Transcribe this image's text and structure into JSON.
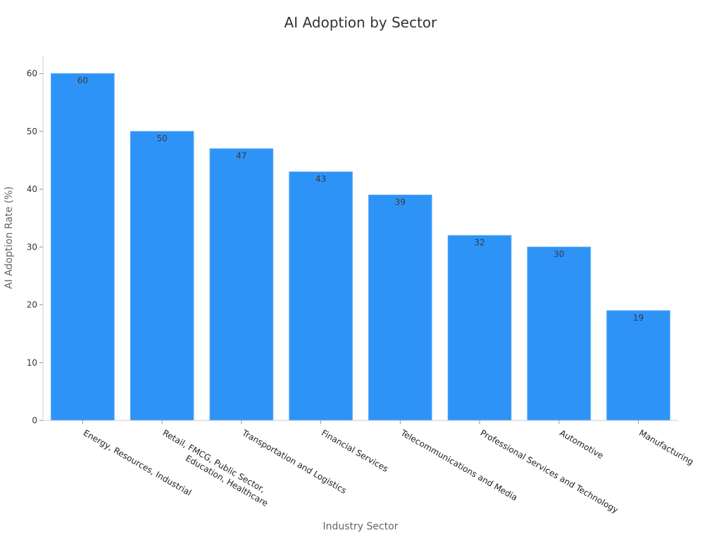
{
  "chart_data": {
    "type": "bar",
    "title": "AI Adoption by Sector",
    "xlabel": "Industry Sector",
    "ylabel": "AI Adoption Rate (%)",
    "categories": [
      "Energy, Resources, Industrial",
      "Retail, FMCG, Public Sector,\nEducation, Healthcare",
      "Transportation and Logistics",
      "Financial Services",
      "Telecommunications and Media",
      "Professional Services and Technology",
      "Automotive",
      "Manufacturing"
    ],
    "values": [
      60,
      50,
      47,
      43,
      39,
      32,
      30,
      19
    ],
    "ylim": [
      0,
      63
    ],
    "yticks": [
      0,
      10,
      20,
      30,
      40,
      50,
      60
    ],
    "bar_color": "#2e93f7",
    "grid": false,
    "legend": "none"
  }
}
